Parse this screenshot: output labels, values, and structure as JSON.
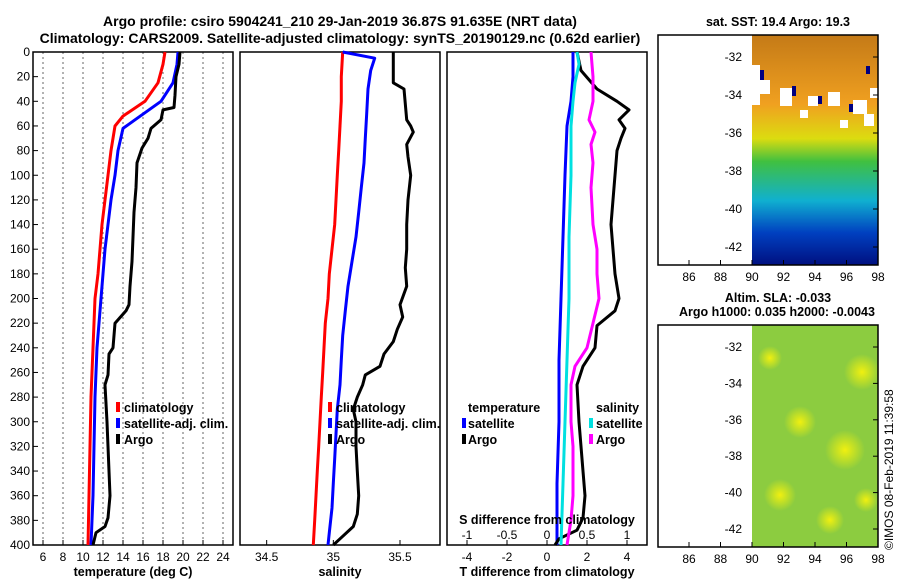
{
  "header": {
    "line1": "Argo profile: csiro 5904241_210 29-Jan-2019 36.87S 91.635E (NRT data)",
    "line2": "Climatology: CARS2009. Satellite-adjusted climatology: synTS_20190129.nc (0.62d earlier)"
  },
  "sst_map": {
    "title": "sat. SST: 19.4 Argo: 19.3",
    "lat_ticks": [
      "-32",
      "-34",
      "-36",
      "-38",
      "-40",
      "-42"
    ],
    "lon_ticks": [
      "86",
      "88",
      "90",
      "92",
      "94",
      "96",
      "98"
    ]
  },
  "sla_map": {
    "title1": "Altim. SLA: -0.033",
    "title2": "Argo h1000: 0.035 h2000: -0.0043",
    "lat_ticks": [
      "-32",
      "-34",
      "-36",
      "-38",
      "-40",
      "-42"
    ],
    "lon_ticks": [
      "86",
      "88",
      "90",
      "92",
      "94",
      "96",
      "98"
    ]
  },
  "credit": "©IMOS 08-Feb-2019 11:39:58",
  "colors": {
    "climatology": "#ff0000",
    "satellite": "#0000ff",
    "argo": "#000000",
    "sat_diff": "#00e0e0",
    "sal_diff": "#ff00ff"
  },
  "chart_data": [
    {
      "type": "line",
      "xlabel": "temperature (deg C)",
      "ylabel": "",
      "xlim": [
        5,
        25
      ],
      "ylim": [
        400,
        0
      ],
      "xticks": [
        "6",
        "8",
        "10",
        "12",
        "14",
        "16",
        "18",
        "20",
        "22",
        "24"
      ],
      "yticks": [
        "0",
        "20",
        "40",
        "60",
        "80",
        "100",
        "120",
        "140",
        "160",
        "180",
        "200",
        "220",
        "240",
        "260",
        "280",
        "300",
        "320",
        "340",
        "360",
        "380",
        "400"
      ],
      "legend": [
        "climatology",
        "satellite-adj. clim.",
        "Argo"
      ],
      "series": [
        {
          "name": "climatology",
          "color": "#ff0000",
          "points": [
            [
              18.2,
              0
            ],
            [
              18.0,
              10
            ],
            [
              17.5,
              25
            ],
            [
              16.2,
              40
            ],
            [
              14.0,
              52
            ],
            [
              13.2,
              60
            ],
            [
              12.8,
              80
            ],
            [
              12.5,
              100
            ],
            [
              12.2,
              120
            ],
            [
              11.9,
              140
            ],
            [
              11.7,
              160
            ],
            [
              11.5,
              180
            ],
            [
              11.2,
              200
            ],
            [
              11.0,
              240
            ],
            [
              10.8,
              280
            ],
            [
              10.7,
              320
            ],
            [
              10.6,
              360
            ],
            [
              10.5,
              400
            ]
          ]
        },
        {
          "name": "satellite-adj. clim.",
          "color": "#0000ff",
          "points": [
            [
              19.5,
              0
            ],
            [
              19.4,
              10
            ],
            [
              19.0,
              25
            ],
            [
              17.8,
              40
            ],
            [
              15.2,
              55
            ],
            [
              14.0,
              62
            ],
            [
              13.5,
              80
            ],
            [
              13.2,
              100
            ],
            [
              12.8,
              120
            ],
            [
              12.5,
              140
            ],
            [
              12.2,
              160
            ],
            [
              12.0,
              180
            ],
            [
              11.8,
              200
            ],
            [
              11.4,
              240
            ],
            [
              11.2,
              280
            ],
            [
              11.1,
              320
            ],
            [
              11.0,
              360
            ],
            [
              10.8,
              400
            ]
          ]
        },
        {
          "name": "Argo",
          "color": "#000000",
          "points": [
            [
              19.7,
              0
            ],
            [
              19.6,
              10
            ],
            [
              19.3,
              20
            ],
            [
              19.2,
              35
            ],
            [
              19.1,
              45
            ],
            [
              18.0,
              47
            ],
            [
              17.8,
              55
            ],
            [
              16.8,
              62
            ],
            [
              16.5,
              70
            ],
            [
              15.9,
              78
            ],
            [
              15.4,
              90
            ],
            [
              15.3,
              110
            ],
            [
              15.1,
              130
            ],
            [
              15.0,
              150
            ],
            [
              14.9,
              170
            ],
            [
              14.7,
              190
            ],
            [
              14.6,
              205
            ],
            [
              14.3,
              210
            ],
            [
              13.2,
              220
            ],
            [
              13.0,
              240
            ],
            [
              12.6,
              245
            ],
            [
              12.5,
              262
            ],
            [
              12.2,
              270
            ],
            [
              12.4,
              300
            ],
            [
              12.5,
              320
            ],
            [
              12.6,
              340
            ],
            [
              12.7,
              360
            ],
            [
              12.5,
              378
            ],
            [
              12.2,
              385
            ],
            [
              11.3,
              390
            ],
            [
              11.0,
              400
            ]
          ]
        }
      ]
    },
    {
      "type": "line",
      "xlabel": "salinity",
      "xlim": [
        34.3,
        35.8
      ],
      "ylim": [
        400,
        0
      ],
      "xticks": [
        "34.5",
        "35",
        "35.5"
      ],
      "legend": [
        "climatology",
        "satellite-adj. clim.",
        "Argo"
      ],
      "series": [
        {
          "name": "climatology",
          "color": "#ff0000",
          "points": [
            [
              35.07,
              0
            ],
            [
              35.06,
              20
            ],
            [
              35.06,
              40
            ],
            [
              35.05,
              60
            ],
            [
              35.04,
              80
            ],
            [
              35.03,
              100
            ],
            [
              35.02,
              120
            ],
            [
              35.01,
              140
            ],
            [
              34.99,
              160
            ],
            [
              34.97,
              180
            ],
            [
              34.96,
              200
            ],
            [
              34.94,
              220
            ],
            [
              34.93,
              240
            ],
            [
              34.92,
              260
            ],
            [
              34.91,
              280
            ],
            [
              34.9,
              300
            ],
            [
              34.89,
              320
            ],
            [
              34.88,
              340
            ],
            [
              34.87,
              360
            ],
            [
              34.86,
              380
            ],
            [
              34.85,
              400
            ]
          ]
        },
        {
          "name": "satellite-adj. clim.",
          "color": "#0000ff",
          "points": [
            [
              35.07,
              0
            ],
            [
              35.31,
              5
            ],
            [
              35.28,
              15
            ],
            [
              35.26,
              30
            ],
            [
              35.25,
              50
            ],
            [
              35.24,
              70
            ],
            [
              35.23,
              90
            ],
            [
              35.21,
              110
            ],
            [
              35.19,
              130
            ],
            [
              35.17,
              150
            ],
            [
              35.14,
              170
            ],
            [
              35.11,
              190
            ],
            [
              35.09,
              210
            ],
            [
              35.07,
              230
            ],
            [
              35.06,
              250
            ],
            [
              35.05,
              270
            ],
            [
              35.03,
              290
            ],
            [
              35.02,
              310
            ],
            [
              35.01,
              330
            ],
            [
              35.0,
              350
            ],
            [
              34.99,
              370
            ],
            [
              34.97,
              390
            ],
            [
              34.96,
              400
            ]
          ]
        },
        {
          "name": "Argo",
          "color": "#000000",
          "points": [
            [
              35.45,
              0
            ],
            [
              35.45,
              25
            ],
            [
              35.53,
              30
            ],
            [
              35.55,
              55
            ],
            [
              35.58,
              60
            ],
            [
              35.6,
              65
            ],
            [
              35.55,
              75
            ],
            [
              35.56,
              85
            ],
            [
              35.58,
              100
            ],
            [
              35.56,
              120
            ],
            [
              35.55,
              140
            ],
            [
              35.55,
              160
            ],
            [
              35.54,
              175
            ],
            [
              35.55,
              190
            ],
            [
              35.5,
              205
            ],
            [
              35.52,
              215
            ],
            [
              35.48,
              225
            ],
            [
              35.45,
              235
            ],
            [
              35.38,
              245
            ],
            [
              35.35,
              255
            ],
            [
              35.24,
              262
            ],
            [
              35.22,
              270
            ],
            [
              35.18,
              280
            ],
            [
              35.15,
              290
            ],
            [
              35.17,
              300
            ],
            [
              35.17,
              320
            ],
            [
              35.18,
              340
            ],
            [
              35.19,
              360
            ],
            [
              35.18,
              375
            ],
            [
              35.15,
              385
            ],
            [
              35.05,
              395
            ],
            [
              35.0,
              400
            ]
          ]
        }
      ]
    },
    {
      "type": "line",
      "xlabel": "T difference from climatology",
      "xlabel_top": "S difference from climatology",
      "xlim": [
        -5,
        5
      ],
      "ylim": [
        400,
        0
      ],
      "xticks": [
        "-4",
        "-2",
        "0",
        "2",
        "4"
      ],
      "xticks_top": [
        "-1",
        "-0.5",
        "0",
        "0.5",
        "1"
      ],
      "legend_t": [
        "temperature",
        "satellite",
        "Argo"
      ],
      "legend_s": [
        "salinity",
        "satellite",
        "Argo"
      ],
      "series": [
        {
          "name": "temperature satellite",
          "color": "#0000ff",
          "points": [
            [
              1.3,
              0
            ],
            [
              1.3,
              20
            ],
            [
              1.2,
              40
            ],
            [
              1.0,
              60
            ],
            [
              0.9,
              100
            ],
            [
              0.8,
              150
            ],
            [
              0.7,
              200
            ],
            [
              0.6,
              250
            ],
            [
              0.6,
              300
            ],
            [
              0.5,
              350
            ],
            [
              0.5,
              400
            ]
          ]
        },
        {
          "name": "temperature Argo",
          "color": "#000000",
          "points": [
            [
              1.5,
              0
            ],
            [
              1.7,
              15
            ],
            [
              2.5,
              30
            ],
            [
              3.5,
              40
            ],
            [
              4.1,
              47
            ],
            [
              3.6,
              55
            ],
            [
              3.9,
              62
            ],
            [
              3.7,
              70
            ],
            [
              3.5,
              80
            ],
            [
              3.4,
              100
            ],
            [
              3.3,
              120
            ],
            [
              3.2,
              140
            ],
            [
              3.3,
              160
            ],
            [
              3.4,
              180
            ],
            [
              3.6,
              200
            ],
            [
              3.4,
              210
            ],
            [
              2.5,
              222
            ],
            [
              2.4,
              240
            ],
            [
              1.8,
              255
            ],
            [
              1.5,
              270
            ],
            [
              1.6,
              300
            ],
            [
              1.7,
              320
            ],
            [
              1.8,
              340
            ],
            [
              1.9,
              360
            ],
            [
              1.8,
              378
            ],
            [
              1.5,
              388
            ],
            [
              0.6,
              395
            ],
            [
              0.4,
              400
            ]
          ]
        },
        {
          "name": "salinity satellite",
          "color": "#00e0e0",
          "points": [
            [
              1.5,
              0
            ],
            [
              1.6,
              10
            ],
            [
              1.4,
              25
            ],
            [
              1.3,
              40
            ],
            [
              1.2,
              60
            ],
            [
              1.2,
              100
            ],
            [
              1.1,
              150
            ],
            [
              1.1,
              200
            ],
            [
              1.0,
              250
            ],
            [
              0.9,
              300
            ],
            [
              0.8,
              350
            ],
            [
              0.7,
              400
            ]
          ]
        },
        {
          "name": "salinity Argo",
          "color": "#ff00ff",
          "points": [
            [
              2.2,
              0
            ],
            [
              2.3,
              20
            ],
            [
              2.3,
              40
            ],
            [
              2.1,
              55
            ],
            [
              2.4,
              65
            ],
            [
              2.2,
              75
            ],
            [
              2.3,
              90
            ],
            [
              2.2,
              110
            ],
            [
              2.3,
              140
            ],
            [
              2.5,
              160
            ],
            [
              2.5,
              180
            ],
            [
              2.6,
              200
            ],
            [
              2.3,
              220
            ],
            [
              2.0,
              240
            ],
            [
              1.4,
              255
            ],
            [
              1.2,
              270
            ],
            [
              1.2,
              300
            ],
            [
              1.3,
              320
            ],
            [
              1.3,
              340
            ],
            [
              1.3,
              360
            ],
            [
              1.2,
              380
            ],
            [
              1.0,
              400
            ]
          ]
        }
      ]
    }
  ]
}
